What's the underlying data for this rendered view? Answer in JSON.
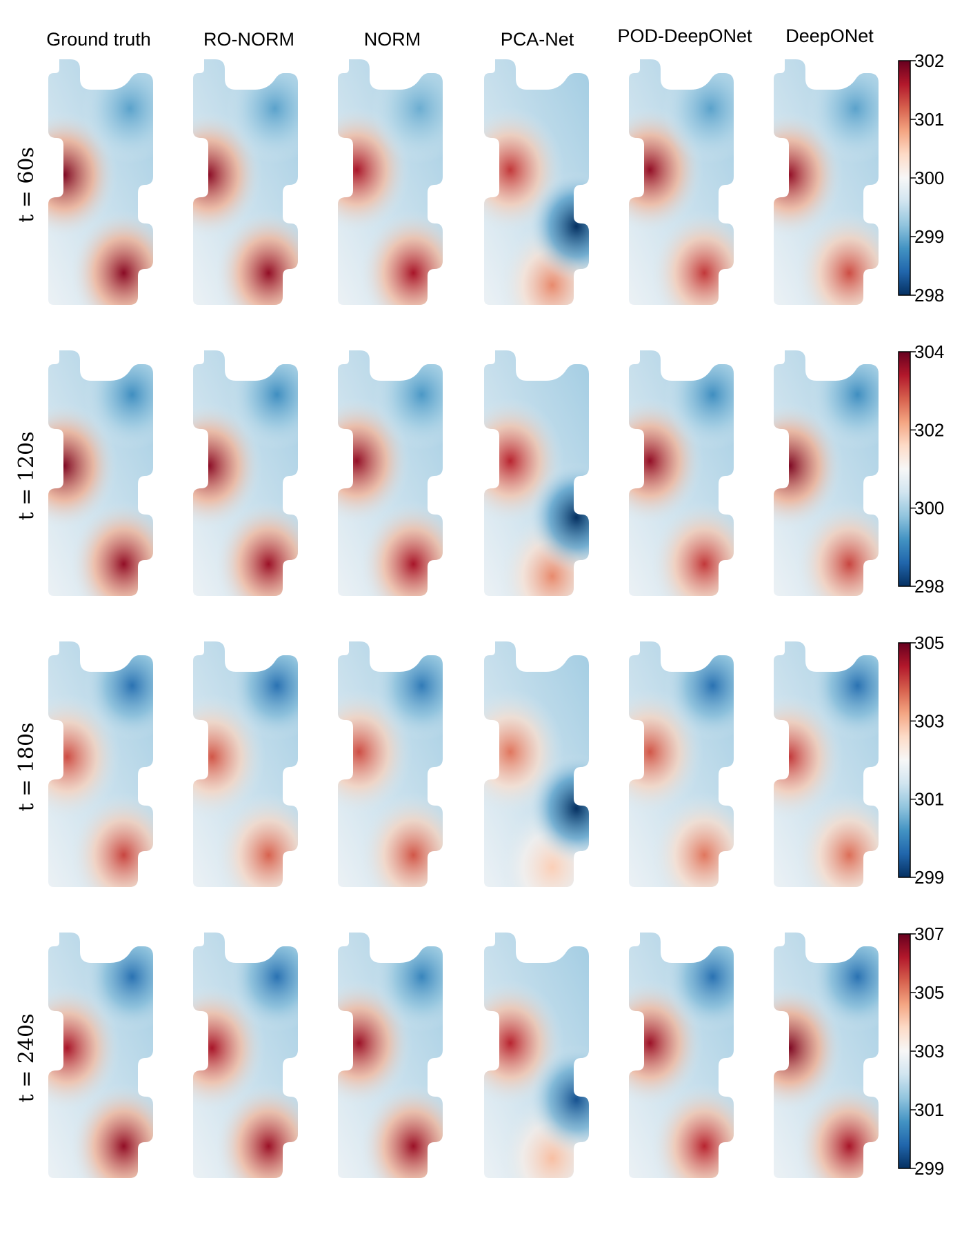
{
  "chart_data": {
    "type": "heatmap",
    "columns": [
      "Ground truth",
      "RO-NORM",
      "NORM",
      "PCA-Net",
      "POD-DeepONet",
      "DeepONet"
    ],
    "rows": [
      {
        "label": "t = 60s",
        "colorbar": {
          "min": 298,
          "max": 302,
          "ticks": [
            302,
            301,
            300,
            299,
            298
          ]
        },
        "fields": [
          {
            "blobs": [
              {
                "cx": 0.15,
                "cy": 0.47,
                "amp": 0.95
              },
              {
                "cx": 0.72,
                "cy": 0.87,
                "amp": 0.92
              },
              {
                "cx": 0.78,
                "cy": 0.2,
                "amp": -0.45
              }
            ]
          },
          {
            "blobs": [
              {
                "cx": 0.15,
                "cy": 0.47,
                "amp": 0.92
              },
              {
                "cx": 0.72,
                "cy": 0.87,
                "amp": 0.9
              },
              {
                "cx": 0.78,
                "cy": 0.2,
                "amp": -0.45
              }
            ]
          },
          {
            "blobs": [
              {
                "cx": 0.18,
                "cy": 0.45,
                "amp": 0.85
              },
              {
                "cx": 0.72,
                "cy": 0.87,
                "amp": 0.85
              },
              {
                "cx": 0.78,
                "cy": 0.2,
                "amp": -0.4
              }
            ]
          },
          {
            "blobs": [
              {
                "cx": 0.25,
                "cy": 0.45,
                "amp": 0.75
              },
              {
                "cx": 0.65,
                "cy": 0.92,
                "amp": 0.55
              },
              {
                "cx": 0.88,
                "cy": 0.68,
                "amp": -1.0
              }
            ]
          },
          {
            "blobs": [
              {
                "cx": 0.2,
                "cy": 0.45,
                "amp": 0.9
              },
              {
                "cx": 0.72,
                "cy": 0.87,
                "amp": 0.75
              },
              {
                "cx": 0.78,
                "cy": 0.2,
                "amp": -0.45
              }
            ]
          },
          {
            "blobs": [
              {
                "cx": 0.15,
                "cy": 0.47,
                "amp": 0.9
              },
              {
                "cx": 0.72,
                "cy": 0.87,
                "amp": 0.7
              },
              {
                "cx": 0.78,
                "cy": 0.2,
                "amp": -0.45
              }
            ]
          }
        ]
      },
      {
        "label": "t = 120s",
        "colorbar": {
          "min": 298,
          "max": 304,
          "ticks": [
            304,
            302,
            300,
            298
          ]
        },
        "fields": [
          {
            "blobs": [
              {
                "cx": 0.15,
                "cy": 0.47,
                "amp": 0.95
              },
              {
                "cx": 0.72,
                "cy": 0.87,
                "amp": 0.9
              },
              {
                "cx": 0.8,
                "cy": 0.18,
                "amp": -0.55
              }
            ]
          },
          {
            "blobs": [
              {
                "cx": 0.15,
                "cy": 0.47,
                "amp": 0.92
              },
              {
                "cx": 0.72,
                "cy": 0.87,
                "amp": 0.88
              },
              {
                "cx": 0.8,
                "cy": 0.18,
                "amp": -0.55
              }
            ]
          },
          {
            "blobs": [
              {
                "cx": 0.18,
                "cy": 0.45,
                "amp": 0.9
              },
              {
                "cx": 0.72,
                "cy": 0.87,
                "amp": 0.85
              },
              {
                "cx": 0.8,
                "cy": 0.18,
                "amp": -0.5
              }
            ]
          },
          {
            "blobs": [
              {
                "cx": 0.25,
                "cy": 0.45,
                "amp": 0.8
              },
              {
                "cx": 0.65,
                "cy": 0.92,
                "amp": 0.55
              },
              {
                "cx": 0.88,
                "cy": 0.68,
                "amp": -1.0
              }
            ]
          },
          {
            "blobs": [
              {
                "cx": 0.2,
                "cy": 0.45,
                "amp": 0.9
              },
              {
                "cx": 0.72,
                "cy": 0.87,
                "amp": 0.75
              },
              {
                "cx": 0.8,
                "cy": 0.18,
                "amp": -0.55
              }
            ]
          },
          {
            "blobs": [
              {
                "cx": 0.15,
                "cy": 0.47,
                "amp": 0.95
              },
              {
                "cx": 0.72,
                "cy": 0.87,
                "amp": 0.72
              },
              {
                "cx": 0.8,
                "cy": 0.18,
                "amp": -0.55
              }
            ]
          }
        ]
      },
      {
        "label": "t = 180s",
        "colorbar": {
          "min": 299,
          "max": 305,
          "ticks": [
            305,
            303,
            301,
            299
          ]
        },
        "fields": [
          {
            "blobs": [
              {
                "cx": 0.18,
                "cy": 0.47,
                "amp": 0.7
              },
              {
                "cx": 0.72,
                "cy": 0.87,
                "amp": 0.72
              },
              {
                "cx": 0.8,
                "cy": 0.18,
                "amp": -0.7
              }
            ]
          },
          {
            "blobs": [
              {
                "cx": 0.18,
                "cy": 0.47,
                "amp": 0.68
              },
              {
                "cx": 0.72,
                "cy": 0.87,
                "amp": 0.65
              },
              {
                "cx": 0.8,
                "cy": 0.18,
                "amp": -0.7
              }
            ]
          },
          {
            "blobs": [
              {
                "cx": 0.2,
                "cy": 0.45,
                "amp": 0.7
              },
              {
                "cx": 0.72,
                "cy": 0.87,
                "amp": 0.68
              },
              {
                "cx": 0.8,
                "cy": 0.18,
                "amp": -0.65
              }
            ]
          },
          {
            "blobs": [
              {
                "cx": 0.25,
                "cy": 0.45,
                "amp": 0.6
              },
              {
                "cx": 0.65,
                "cy": 0.92,
                "amp": 0.35
              },
              {
                "cx": 0.88,
                "cy": 0.68,
                "amp": -1.0
              }
            ]
          },
          {
            "blobs": [
              {
                "cx": 0.2,
                "cy": 0.45,
                "amp": 0.68
              },
              {
                "cx": 0.72,
                "cy": 0.87,
                "amp": 0.6
              },
              {
                "cx": 0.8,
                "cy": 0.18,
                "amp": -0.7
              }
            ]
          },
          {
            "blobs": [
              {
                "cx": 0.15,
                "cy": 0.47,
                "amp": 0.75
              },
              {
                "cx": 0.72,
                "cy": 0.87,
                "amp": 0.62
              },
              {
                "cx": 0.8,
                "cy": 0.18,
                "amp": -0.7
              }
            ]
          }
        ]
      },
      {
        "label": "t = 240s",
        "colorbar": {
          "min": 299,
          "max": 307,
          "ticks": [
            307,
            305,
            303,
            301,
            299
          ]
        },
        "fields": [
          {
            "blobs": [
              {
                "cx": 0.18,
                "cy": 0.47,
                "amp": 0.85
              },
              {
                "cx": 0.72,
                "cy": 0.87,
                "amp": 0.9
              },
              {
                "cx": 0.8,
                "cy": 0.18,
                "amp": -0.7
              }
            ]
          },
          {
            "blobs": [
              {
                "cx": 0.18,
                "cy": 0.47,
                "amp": 0.85
              },
              {
                "cx": 0.72,
                "cy": 0.87,
                "amp": 0.88
              },
              {
                "cx": 0.8,
                "cy": 0.18,
                "amp": -0.7
              }
            ]
          },
          {
            "blobs": [
              {
                "cx": 0.2,
                "cy": 0.45,
                "amp": 0.88
              },
              {
                "cx": 0.72,
                "cy": 0.87,
                "amp": 0.88
              },
              {
                "cx": 0.8,
                "cy": 0.18,
                "amp": -0.6
              }
            ]
          },
          {
            "blobs": [
              {
                "cx": 0.25,
                "cy": 0.45,
                "amp": 0.8
              },
              {
                "cx": 0.65,
                "cy": 0.92,
                "amp": 0.4
              },
              {
                "cx": 0.88,
                "cy": 0.68,
                "amp": -0.85
              }
            ]
          },
          {
            "blobs": [
              {
                "cx": 0.2,
                "cy": 0.45,
                "amp": 0.88
              },
              {
                "cx": 0.72,
                "cy": 0.87,
                "amp": 0.8
              },
              {
                "cx": 0.8,
                "cy": 0.18,
                "amp": -0.7
              }
            ]
          },
          {
            "blobs": [
              {
                "cx": 0.15,
                "cy": 0.47,
                "amp": 0.95
              },
              {
                "cx": 0.72,
                "cy": 0.87,
                "amp": 0.85
              },
              {
                "cx": 0.8,
                "cy": 0.18,
                "amp": -0.7
              }
            ]
          }
        ]
      }
    ],
    "colormap": "RdBu_r",
    "colormap_stops": [
      "#053061",
      "#2166ac",
      "#4393c3",
      "#92c5de",
      "#d1e5f0",
      "#f7f7f7",
      "#fddbc7",
      "#f4a582",
      "#d6604d",
      "#b2182b",
      "#67001f"
    ],
    "background_level": 0.42
  }
}
